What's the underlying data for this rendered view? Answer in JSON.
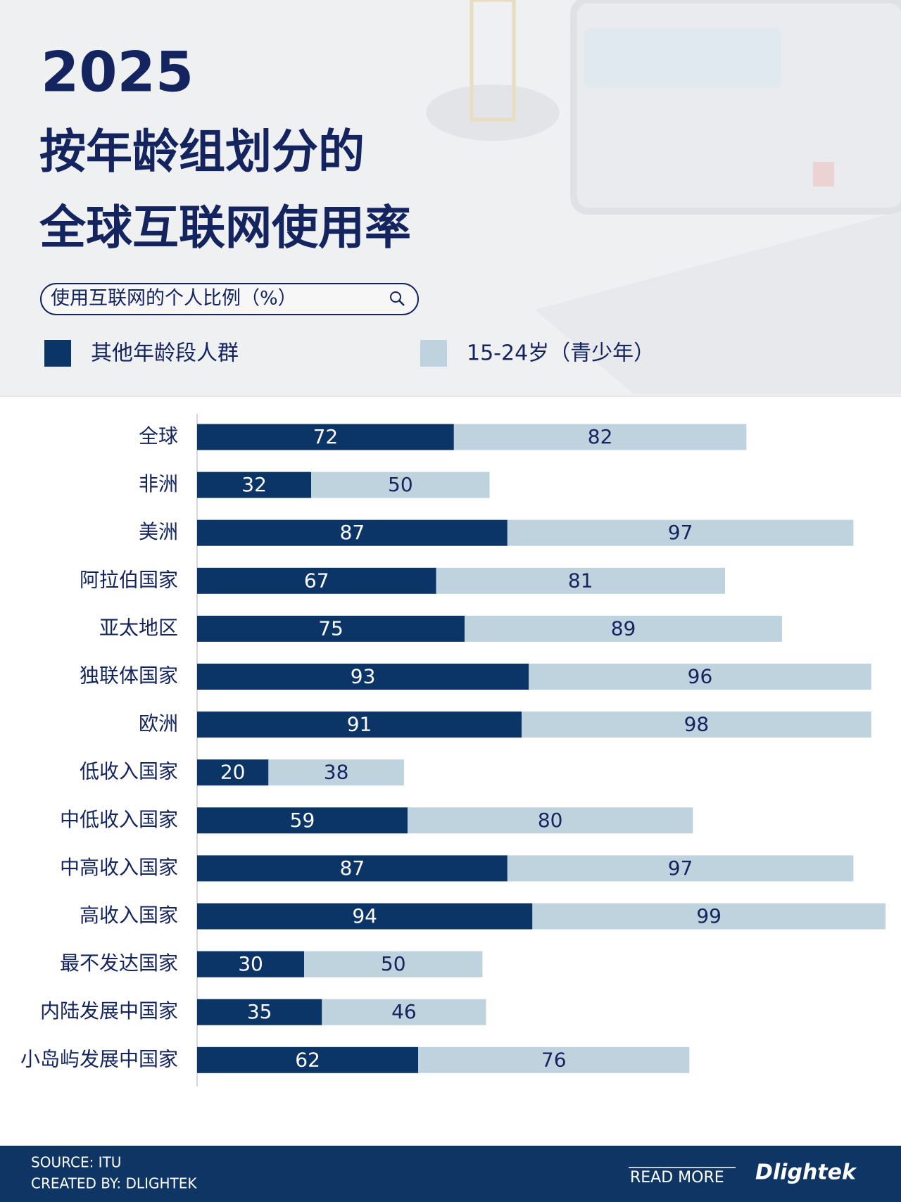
{
  "chart_data": {
    "type": "bar",
    "orientation": "horizontal",
    "stacked": true,
    "title_lines": [
      "2025",
      "按年龄组划分的",
      "全球互联网使用率"
    ],
    "x_label": "使用互联网的个人比例（%）",
    "categories": [
      "全球",
      "非洲",
      "美洲",
      "阿拉伯国家",
      "亚太地区",
      "独联体国家",
      "欧洲",
      "低收入国家",
      "中低收入国家",
      "中高收入国家",
      "高收入国家",
      "最不发达国家",
      "内陆发展中国家",
      "小岛屿发展中国家"
    ],
    "series": [
      {
        "name": "其他年龄段人群",
        "color": "#0b3566",
        "values": [
          72,
          32,
          87,
          67,
          75,
          93,
          91,
          20,
          59,
          87,
          94,
          30,
          35,
          62
        ]
      },
      {
        "name": "15-24岁（青少年）",
        "color": "#bfd3df",
        "values": [
          82,
          50,
          97,
          81,
          89,
          96,
          98,
          38,
          80,
          97,
          99,
          50,
          46,
          76
        ]
      }
    ]
  },
  "footer": {
    "source": "SOURCE: ITU",
    "created_by": "CREATED BY: DLIGHTEK",
    "read_more": "READ MORE",
    "brand": "Dlightek"
  }
}
